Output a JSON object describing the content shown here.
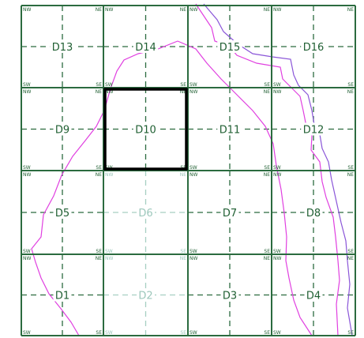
{
  "map": {
    "colors": {
      "grid_major": "#2b6b3f",
      "grid_minor": "#2b6b3f",
      "grid_faded": "#a6cfc2",
      "boundary_magenta": "#e040e0",
      "boundary_purple": "#8a55d8",
      "selection": "#000000"
    },
    "selected_cell": "D10",
    "faded_cells": [
      "D6",
      "D2"
    ],
    "cells": [
      {
        "id": "D13",
        "label": "D13",
        "row": 0,
        "col": 0
      },
      {
        "id": "D14",
        "label": "D14",
        "row": 0,
        "col": 1
      },
      {
        "id": "D15",
        "label": "D15",
        "row": 0,
        "col": 2
      },
      {
        "id": "D16",
        "label": "D16",
        "row": 0,
        "col": 3
      },
      {
        "id": "D9",
        "label": "D9",
        "row": 1,
        "col": 0
      },
      {
        "id": "D10",
        "label": "D10",
        "row": 1,
        "col": 1
      },
      {
        "id": "D11",
        "label": "D11",
        "row": 1,
        "col": 2
      },
      {
        "id": "D12",
        "label": "D12",
        "row": 1,
        "col": 3
      },
      {
        "id": "D5",
        "label": "D5",
        "row": 2,
        "col": 0
      },
      {
        "id": "D6",
        "label": "D6",
        "row": 2,
        "col": 1
      },
      {
        "id": "D7",
        "label": "D7",
        "row": 2,
        "col": 2
      },
      {
        "id": "D8",
        "label": "D8",
        "row": 2,
        "col": 3
      },
      {
        "id": "D1",
        "label": "D1",
        "row": 3,
        "col": 0
      },
      {
        "id": "D2",
        "label": "D2",
        "row": 3,
        "col": 1
      },
      {
        "id": "D3",
        "label": "D3",
        "row": 3,
        "col": 2
      },
      {
        "id": "D4",
        "label": "D4",
        "row": 3,
        "col": 3
      }
    ],
    "corner_labels": {
      "nw": "NW",
      "ne": "NE",
      "sw": "SW",
      "se": "SE"
    }
  }
}
